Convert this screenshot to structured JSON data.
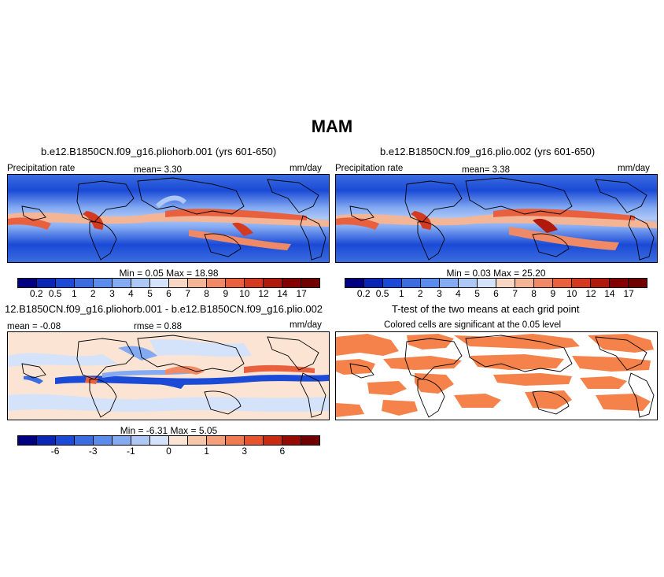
{
  "title": "MAM",
  "panels": {
    "top_left": {
      "title": "b.e12.B1850CN.f09_g16.pliohorb.001 (yrs 601-650)",
      "var_label": "Precipitation rate",
      "mean_text": "mean=   3.30",
      "units": "mm/day",
      "minmax_text": "Min =   0.05  Max =   18.98",
      "colorbar_labels": [
        "0.2",
        "0.5",
        "1",
        "2",
        "3",
        "4",
        "5",
        "6",
        "7",
        "8",
        "9",
        "10",
        "12",
        "14",
        "17"
      ]
    },
    "top_right": {
      "title": "b.e12.B1850CN.f09_g16.plio.002 (yrs 601-650)",
      "var_label": "Precipitation rate",
      "mean_text": "mean=   3.38",
      "units": "mm/day",
      "minmax_text": "Min =   0.03  Max =   25.20",
      "colorbar_labels": [
        "0.2",
        "0.5",
        "1",
        "2",
        "3",
        "4",
        "5",
        "6",
        "7",
        "8",
        "9",
        "10",
        "12",
        "14",
        "17"
      ]
    },
    "bottom_left": {
      "title": "12.B1850CN.f09_g16.pliohorb.001 - b.e12.B1850CN.f09_g16.plio.002",
      "mean_text": "mean =  -0.08",
      "rmse_text": "rmse =   0.88",
      "units": "mm/day",
      "minmax_text": "Min =   -6.31  Max =    5.05",
      "colorbar_labels": [
        "-6",
        "-3",
        "-1",
        "0",
        "1",
        "3",
        "6"
      ]
    },
    "bottom_right": {
      "title": "T-test of the two means at each grid point",
      "subtitle": "Colored cells are significant at the 0.05 level"
    }
  },
  "colors": {
    "seq_colorbar": [
      "#000080",
      "#0a26b4",
      "#1a4ad6",
      "#3b6de0",
      "#5a8cec",
      "#84aaf2",
      "#aec8f6",
      "#d4e2fa",
      "#f7d7c4",
      "#f4b496",
      "#f08a66",
      "#e9603f",
      "#d43a1f",
      "#b01a0c",
      "#840000"
    ],
    "diff_colorbar": [
      "#000080",
      "#0a26b4",
      "#1a4ad6",
      "#3b6de0",
      "#5a8cec",
      "#84aaf2",
      "#aec8f6",
      "#d4e2fa",
      "#fbe4d4",
      "#f7c7a8",
      "#f4a07a",
      "#ef7a4f",
      "#e6532d",
      "#c92a12",
      "#960a00",
      "#700000"
    ],
    "ttest_fill": "#f4824a"
  }
}
